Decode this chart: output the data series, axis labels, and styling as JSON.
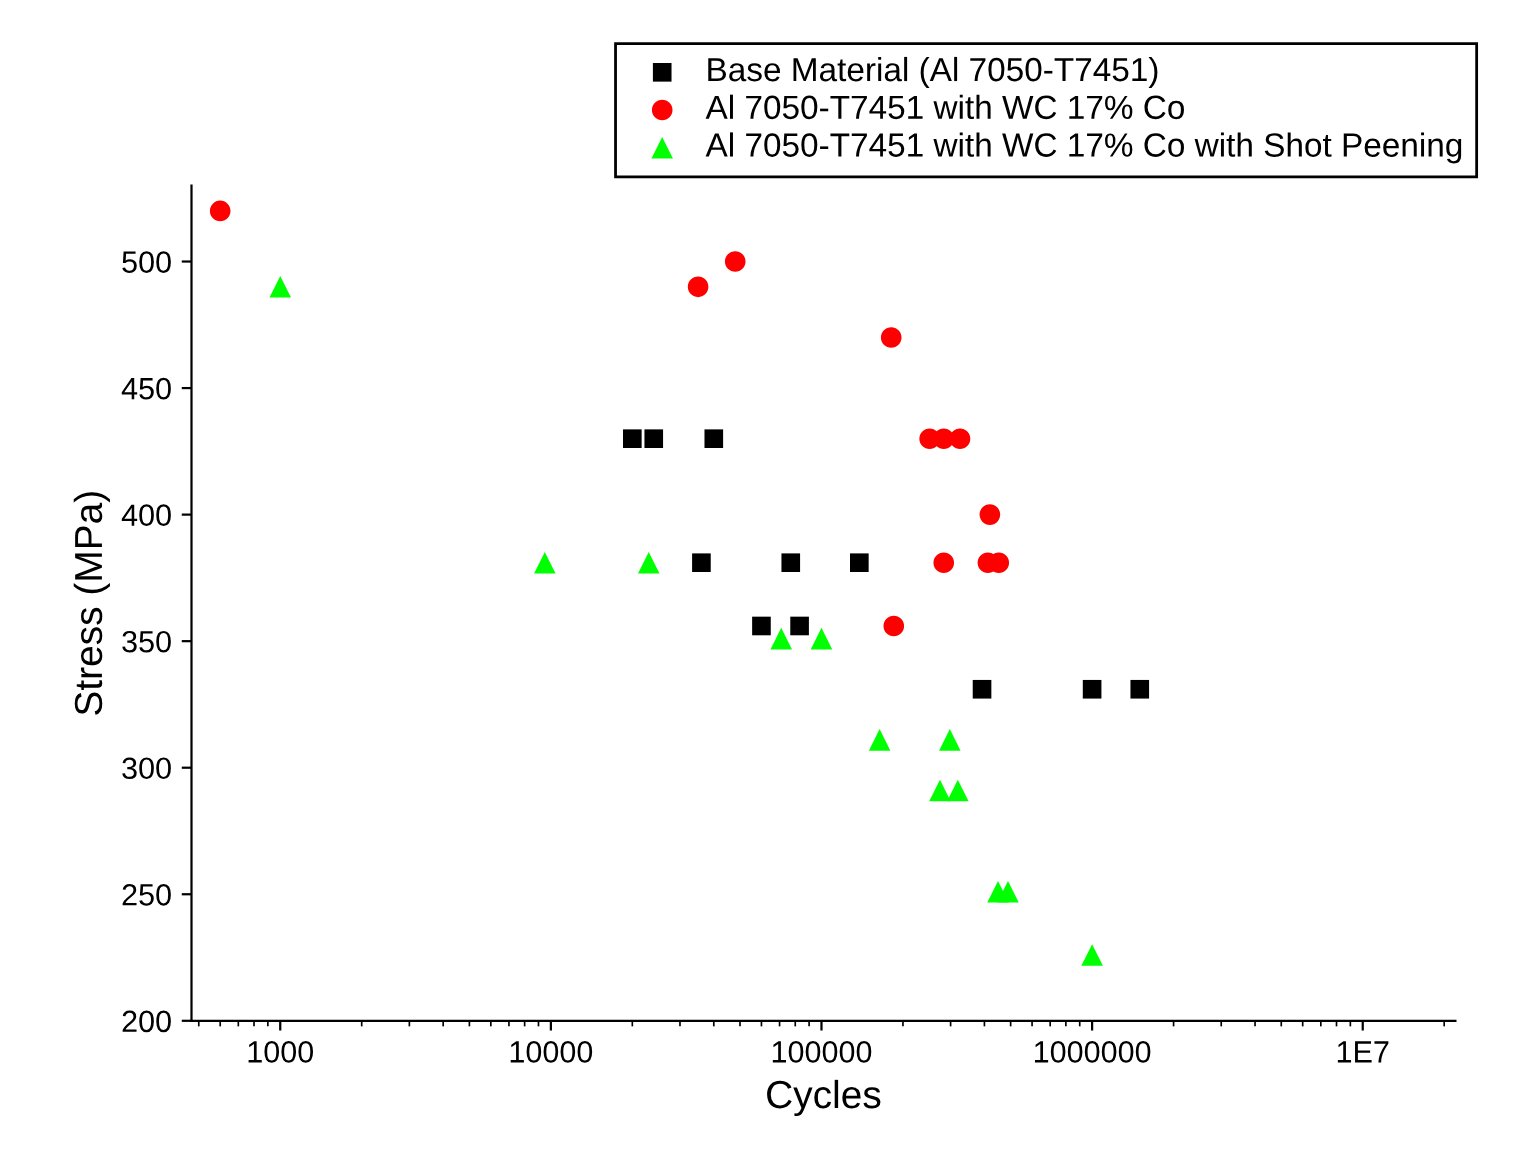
{
  "chart_data": {
    "type": "scatter",
    "xlabel": "Cycles",
    "ylabel": "Stress (MPa)",
    "log": "x",
    "xlim": [
      470,
      22000000
    ],
    "xticks": [
      1000,
      10000,
      100000,
      1000000,
      {
        "value": 10000000,
        "label": "1E7"
      }
    ],
    "ylim": [
      200,
      530
    ],
    "yticks": [
      200,
      250,
      300,
      350,
      400,
      450,
      500
    ],
    "grid": false,
    "legend": "top right",
    "series": [
      {
        "name": "Base Material (Al 7050-T7451)",
        "color": "#000000",
        "marker": "square",
        "x": [
          20000,
          24000,
          40000,
          36000,
          77000,
          138000,
          60000,
          83000,
          392000,
          1000000,
          1500000
        ],
        "values": [
          430,
          430,
          430,
          381,
          381,
          381,
          356,
          356,
          331,
          331,
          331
        ]
      },
      {
        "name": "Al 7050-T7451 with WC 17% Co",
        "color": "#ff0000",
        "marker": "circle",
        "x": [
          600,
          35000,
          48000,
          181000,
          251000,
          283000,
          325000,
          419000,
          283000,
          412000,
          452000,
          185000
        ],
        "values": [
          520,
          490,
          500,
          470,
          430,
          430,
          430,
          400,
          381,
          381,
          381,
          356
        ]
      },
      {
        "name": "Al 7050-T7451 with WC 17% Co with Shot Peening",
        "color": "#00ff00",
        "marker": "triangle",
        "x": [
          1000,
          9500,
          23000,
          71000,
          100000,
          164000,
          298000,
          274000,
          319000,
          449000,
          489000,
          1000000
        ],
        "values": [
          490,
          381,
          381,
          351,
          351,
          311,
          311,
          291,
          291,
          251,
          251,
          226
        ]
      }
    ]
  }
}
